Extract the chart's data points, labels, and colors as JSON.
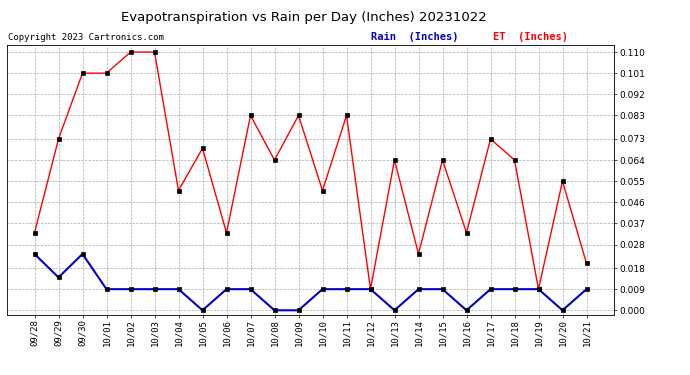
{
  "title": "Evapotranspiration vs Rain per Day (Inches) 20231022",
  "copyright": "Copyright 2023 Cartronics.com",
  "legend_rain": "Rain  (Inches)",
  "legend_et": "ET  (Inches)",
  "x_labels": [
    "09/28",
    "09/29",
    "09/30",
    "10/01",
    "10/02",
    "10/03",
    "10/04",
    "10/05",
    "10/06",
    "10/07",
    "10/08",
    "10/09",
    "10/10",
    "10/11",
    "10/12",
    "10/13",
    "10/14",
    "10/15",
    "10/16",
    "10/17",
    "10/18",
    "10/19",
    "10/20",
    "10/21"
  ],
  "et_values": [
    0.033,
    0.073,
    0.101,
    0.101,
    0.11,
    0.11,
    0.051,
    0.069,
    0.033,
    0.083,
    0.064,
    0.083,
    0.051,
    0.083,
    0.009,
    0.064,
    0.024,
    0.064,
    0.033,
    0.073,
    0.064,
    0.009,
    0.055,
    0.02
  ],
  "rain_values": [
    0.024,
    0.014,
    0.024,
    0.009,
    0.009,
    0.009,
    0.009,
    0.0,
    0.009,
    0.009,
    0.0,
    0.0,
    0.009,
    0.009,
    0.009,
    0.0,
    0.009,
    0.009,
    0.0,
    0.009,
    0.009,
    0.009,
    0.0,
    0.009
  ],
  "et_color": "#ff0000",
  "rain_color": "#0000cc",
  "grid_color": "#aaaaaa",
  "background_color": "#ffffff",
  "ylim": [
    0.0,
    0.11
  ],
  "yticks": [
    0.0,
    0.009,
    0.018,
    0.028,
    0.037,
    0.046,
    0.055,
    0.064,
    0.073,
    0.083,
    0.092,
    0.101,
    0.11
  ],
  "title_fontsize": 9.5,
  "tick_fontsize": 6.5,
  "legend_fontsize": 7.5,
  "copyright_fontsize": 6.5
}
